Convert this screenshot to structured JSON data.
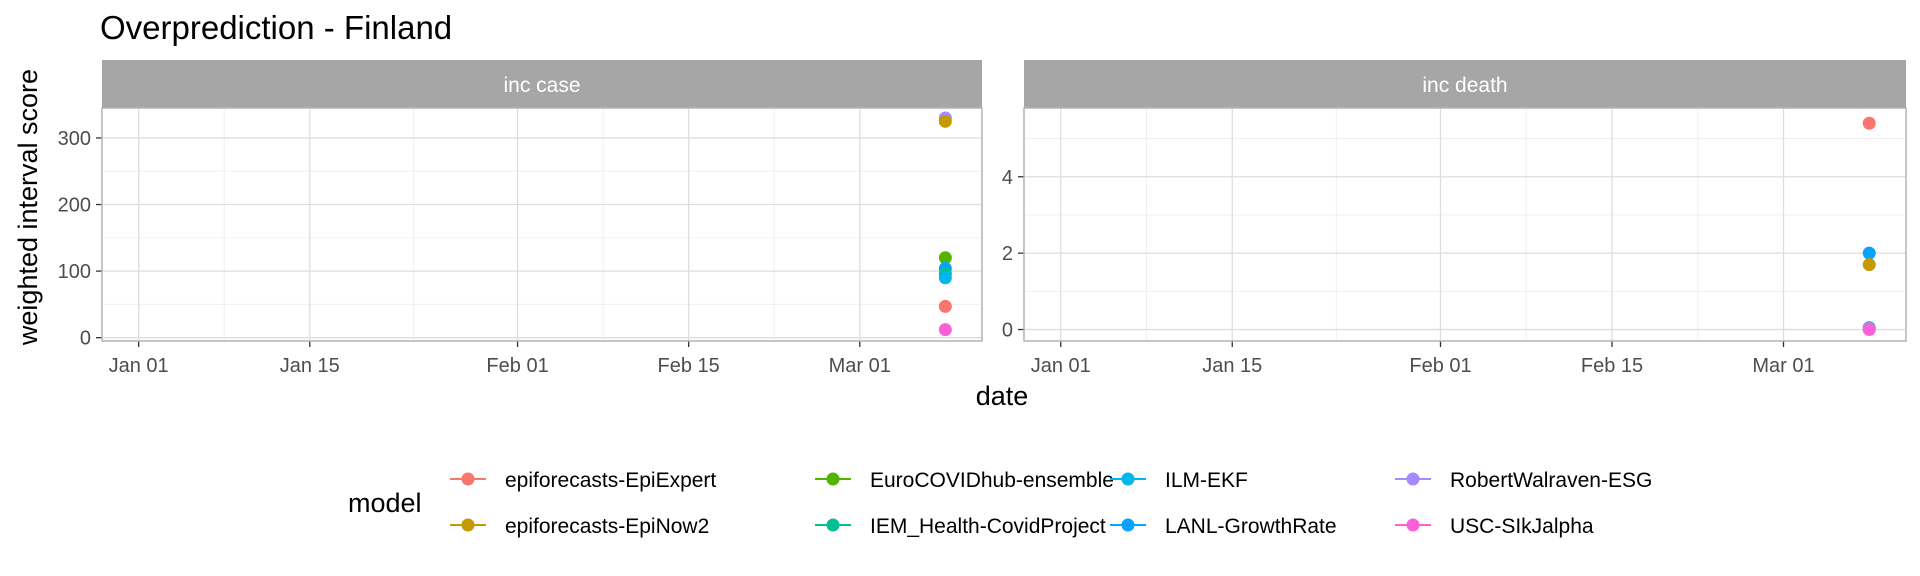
{
  "chart_data": {
    "type": "scatter",
    "title": "Overprediction - Finland",
    "xlabel": "date",
    "ylabel": "weighted interval score",
    "x_domain": [
      "2020-12-29",
      "2021-03-11"
    ],
    "x_ticks": [
      {
        "date": "2021-01-01",
        "label": "Jan 01"
      },
      {
        "date": "2021-01-15",
        "label": "Jan 15"
      },
      {
        "date": "2021-02-01",
        "label": "Feb 01"
      },
      {
        "date": "2021-02-15",
        "label": "Feb 15"
      },
      {
        "date": "2021-03-01",
        "label": "Mar 01"
      }
    ],
    "legend": {
      "title": "model",
      "position": "bottom",
      "entries": [
        {
          "name": "epiforecasts-EpiExpert",
          "color": "#F8766D"
        },
        {
          "name": "epiforecasts-EpiNow2",
          "color": "#C49A00"
        },
        {
          "name": "EuroCOVIDhub-ensemble",
          "color": "#53B400"
        },
        {
          "name": "IEM_Health-CovidProject",
          "color": "#00C094"
        },
        {
          "name": "ILM-EKF",
          "color": "#00B6EB"
        },
        {
          "name": "LANL-GrowthRate",
          "color": "#06A4FF"
        },
        {
          "name": "RobertWalraven-ESG",
          "color": "#A58AFF"
        },
        {
          "name": "USC-SIkJalpha",
          "color": "#FB61D7"
        }
      ]
    },
    "panels": [
      {
        "label": "inc case",
        "ylim": [
          -5,
          345
        ],
        "y_ticks": [
          0,
          100,
          200,
          300
        ],
        "points": [
          {
            "model": "RobertWalraven-ESG",
            "x": "2021-03-08",
            "y": 330
          },
          {
            "model": "epiforecasts-EpiNow2",
            "x": "2021-03-08",
            "y": 325
          },
          {
            "model": "EuroCOVIDhub-ensemble",
            "x": "2021-03-08",
            "y": 120
          },
          {
            "model": "LANL-GrowthRate",
            "x": "2021-03-08",
            "y": 104
          },
          {
            "model": "IEM_Health-CovidProject",
            "x": "2021-03-08",
            "y": 96
          },
          {
            "model": "ILM-EKF",
            "x": "2021-03-08",
            "y": 90
          },
          {
            "model": "epiforecasts-EpiExpert",
            "x": "2021-03-08",
            "y": 47
          },
          {
            "model": "USC-SIkJalpha",
            "x": "2021-03-08",
            "y": 12
          }
        ]
      },
      {
        "label": "inc death",
        "ylim": [
          -0.3,
          5.8
        ],
        "y_ticks": [
          0,
          2,
          4
        ],
        "points": [
          {
            "model": "epiforecasts-EpiExpert",
            "x": "2021-03-08",
            "y": 5.4
          },
          {
            "model": "LANL-GrowthRate",
            "x": "2021-03-08",
            "y": 2.0
          },
          {
            "model": "epiforecasts-EpiNow2",
            "x": "2021-03-08",
            "y": 1.7
          },
          {
            "model": "IEM_Health-CovidProject",
            "x": "2021-03-08",
            "y": 0.05
          },
          {
            "model": "RobertWalraven-ESG",
            "x": "2021-03-08",
            "y": 0.03
          },
          {
            "model": "USC-SIkJalpha",
            "x": "2021-03-08",
            "y": 0.0
          }
        ]
      }
    ]
  }
}
